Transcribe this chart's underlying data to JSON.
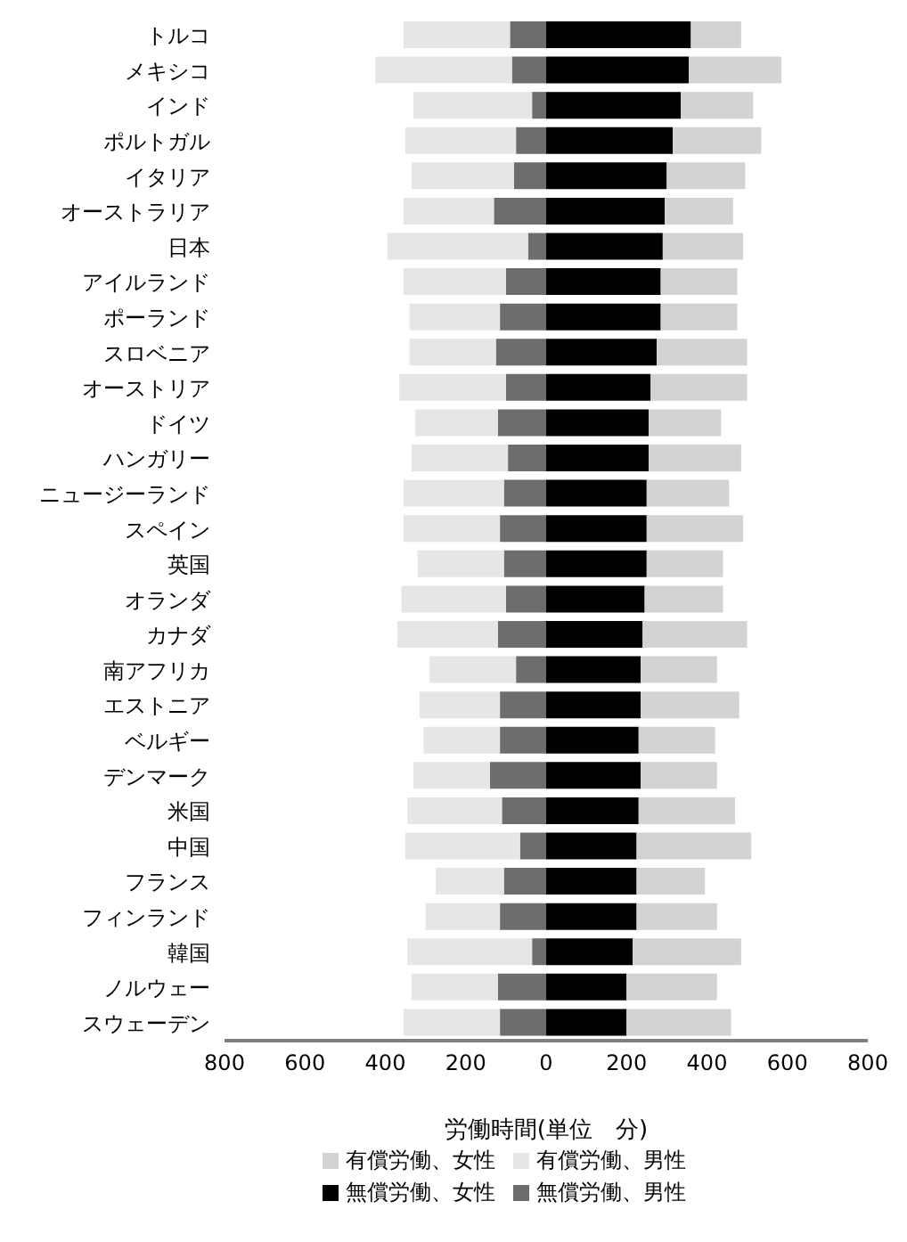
{
  "chart_data": {
    "type": "bar",
    "orientation": "horizontal",
    "stacked": true,
    "xlabel": "労働時間(単位　分)",
    "categories": [
      "トルコ",
      "メキシコ",
      "インド",
      "ポルトガル",
      "イタリア",
      "オーストラリア",
      "日本",
      "アイルランド",
      "ポーランド",
      "スロベニア",
      "オーストリア",
      "ドイツ",
      "ハンガリー",
      "ニュージーランド",
      "スペイン",
      "英国",
      "オランダ",
      "カナダ",
      "南アフリカ",
      "エストニア",
      "ベルギー",
      "デンマーク",
      "米国",
      "中国",
      "フランス",
      "フィンランド",
      "韓国",
      "ノルウェー",
      "スウェーデン"
    ],
    "series": [
      {
        "name": "無償労働、男性",
        "color": "#6d6d6d",
        "values": [
          -90,
          -85,
          -35,
          -75,
          -80,
          -130,
          -45,
          -100,
          -115,
          -125,
          -100,
          -120,
          -95,
          -105,
          -115,
          -105,
          -100,
          -120,
          -75,
          -115,
          -115,
          -140,
          -110,
          -65,
          -105,
          -115,
          -35,
          -120,
          -115
        ]
      },
      {
        "name": "無償労働、女性",
        "color": "#000000",
        "values": [
          360,
          355,
          335,
          315,
          300,
          295,
          290,
          285,
          285,
          275,
          260,
          255,
          255,
          250,
          250,
          250,
          245,
          240,
          235,
          235,
          230,
          235,
          230,
          225,
          225,
          225,
          215,
          200,
          200
        ]
      },
      {
        "name": "有償労働、男性",
        "color": "#e6e6e6",
        "values": [
          -265,
          -340,
          -295,
          -275,
          -255,
          -225,
          -350,
          -255,
          -225,
          -215,
          -265,
          -205,
          -240,
          -250,
          -240,
          -215,
          -260,
          -250,
          -215,
          -200,
          -190,
          -190,
          -235,
          -285,
          -170,
          -185,
          -310,
          -215,
          -240
        ]
      },
      {
        "name": "有償労働、女性",
        "color": "#d3d3d3",
        "values": [
          125,
          230,
          180,
          220,
          195,
          170,
          200,
          190,
          190,
          225,
          240,
          180,
          230,
          205,
          240,
          190,
          195,
          260,
          190,
          245,
          190,
          190,
          240,
          285,
          170,
          200,
          270,
          225,
          260
        ]
      }
    ],
    "xlim": [
      -800,
      800
    ],
    "xticks": [
      {
        "value": -800,
        "label": "800"
      },
      {
        "value": -600,
        "label": "600"
      },
      {
        "value": -400,
        "label": "400"
      },
      {
        "value": -200,
        "label": "200"
      },
      0,
      200,
      400,
      600,
      800
    ],
    "legend": "bottom"
  }
}
